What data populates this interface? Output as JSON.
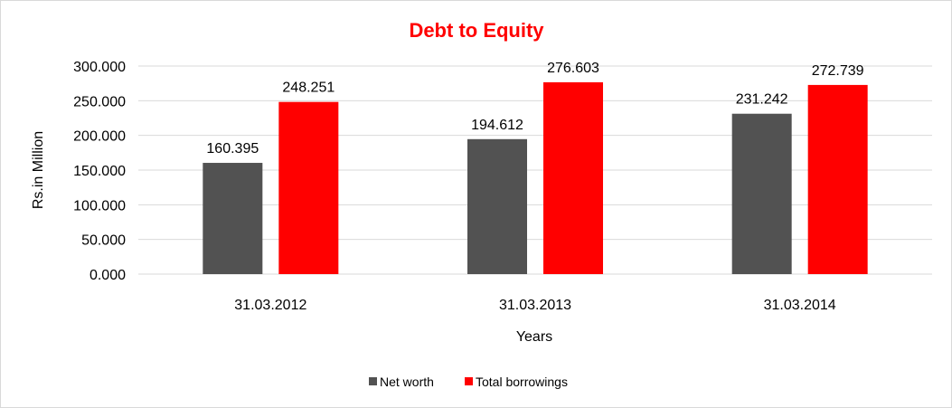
{
  "chart_data": {
    "type": "bar",
    "title": "Debt to Equity",
    "xlabel": "Years",
    "ylabel": "Rs.in Million",
    "categories": [
      "31.03.2012",
      "31.03.2013",
      "31.03.2014"
    ],
    "series": [
      {
        "name": "Net worth",
        "values": [
          160.395,
          194.612,
          231.242
        ],
        "labels": [
          "160.395",
          "194.612",
          "231.242"
        ],
        "color": "#525252"
      },
      {
        "name": "Total borrowings",
        "values": [
          248.251,
          276.603,
          272.739
        ],
        "labels": [
          "248.251",
          "276.603",
          "272.739"
        ],
        "color": "#ff0000"
      }
    ],
    "ylim": [
      0,
      300
    ],
    "yticks": [
      "0.000",
      "50.000",
      "100.000",
      "150.000",
      "200.000",
      "250.000",
      "300.000"
    ],
    "grid": true,
    "legend": "bottom",
    "title_color": "#ff0000"
  }
}
